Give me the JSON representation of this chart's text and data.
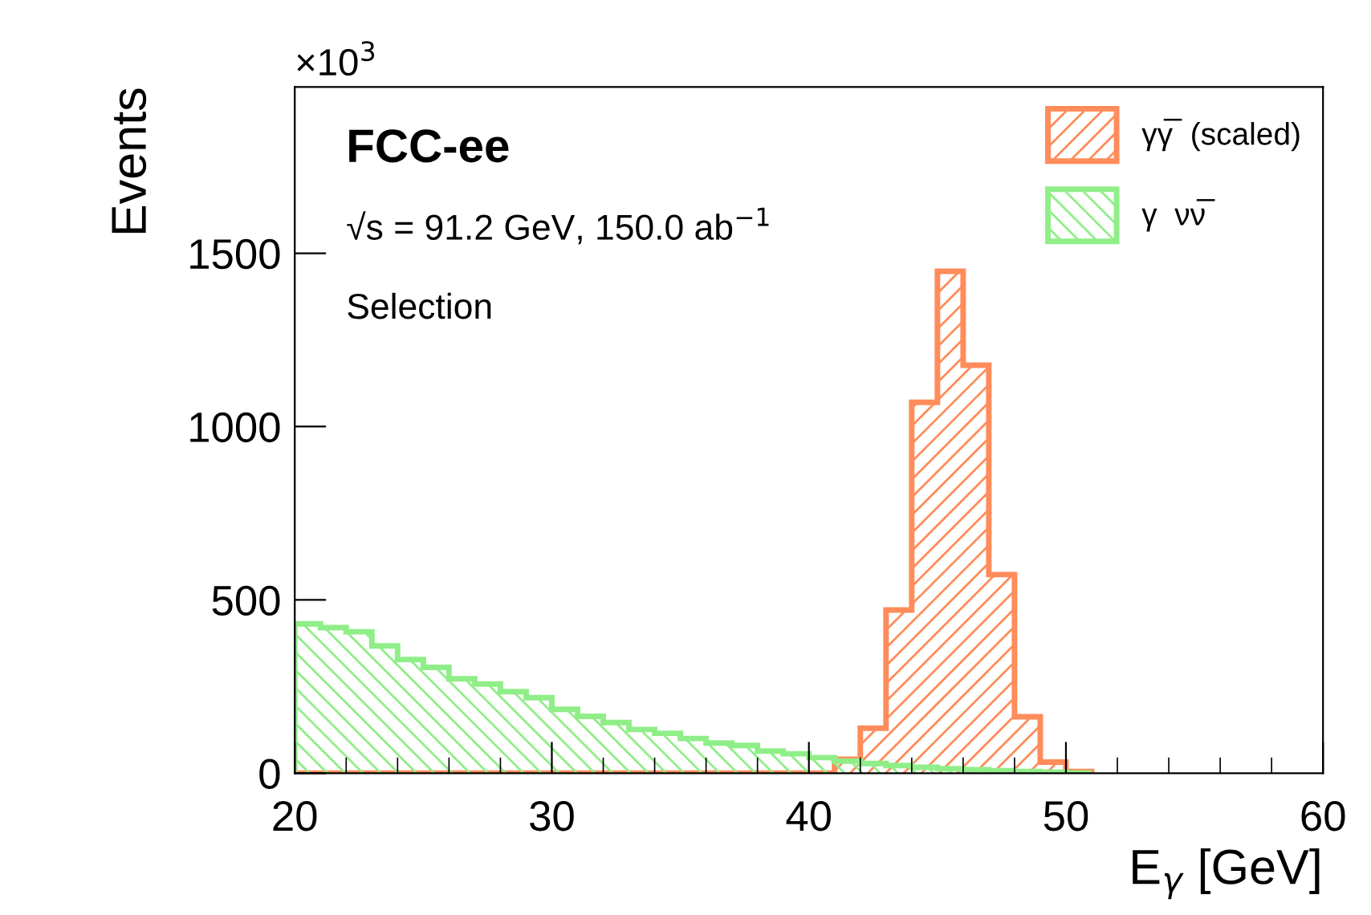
{
  "chart_data": {
    "type": "histogram",
    "xlabel": "E$_{γ}$ [GeV]",
    "ylabel": "Events",
    "annotations": [
      "×10$^{3}$",
      "FCC-ee",
      "√s = 91.2 GeV, 150.0 ab$^{−1}$",
      "Selection"
    ],
    "bins": [
      20,
      21,
      22,
      23,
      24,
      25,
      26,
      27,
      28,
      29,
      30,
      31,
      32,
      33,
      34,
      35,
      36,
      37,
      38,
      39,
      40,
      41,
      42,
      43,
      44,
      45,
      46,
      47,
      48,
      49,
      50,
      51
    ],
    "series": [
      {
        "name": "γγ̅  (scaled)",
        "color": "#ff8c5a",
        "values": [
          0,
          0,
          0,
          0,
          0,
          0,
          0,
          0,
          0,
          0,
          0,
          0,
          0,
          0,
          0,
          0,
          0,
          0,
          0,
          0,
          0,
          40,
          130,
          471,
          1070,
          1448,
          1177,
          573,
          163,
          32,
          5
        ]
      },
      {
        "name": "γ  νν̅",
        "color": "#90ee88",
        "values": [
          431,
          420,
          408,
          367,
          328,
          305,
          272,
          257,
          235,
          218,
          184,
          164,
          146,
          126,
          115,
          100,
          87,
          80,
          64,
          56,
          45,
          35,
          28,
          22,
          17,
          13,
          10,
          7,
          5,
          3,
          0
        ]
      }
    ],
    "xlim": [
      20,
      60
    ],
    "ylim": [
      0,
      1980
    ],
    "xticks": [
      20,
      30,
      40,
      50,
      60
    ],
    "yticks": [
      0,
      500,
      1000,
      1500
    ],
    "grid": false,
    "legend": "top right"
  }
}
